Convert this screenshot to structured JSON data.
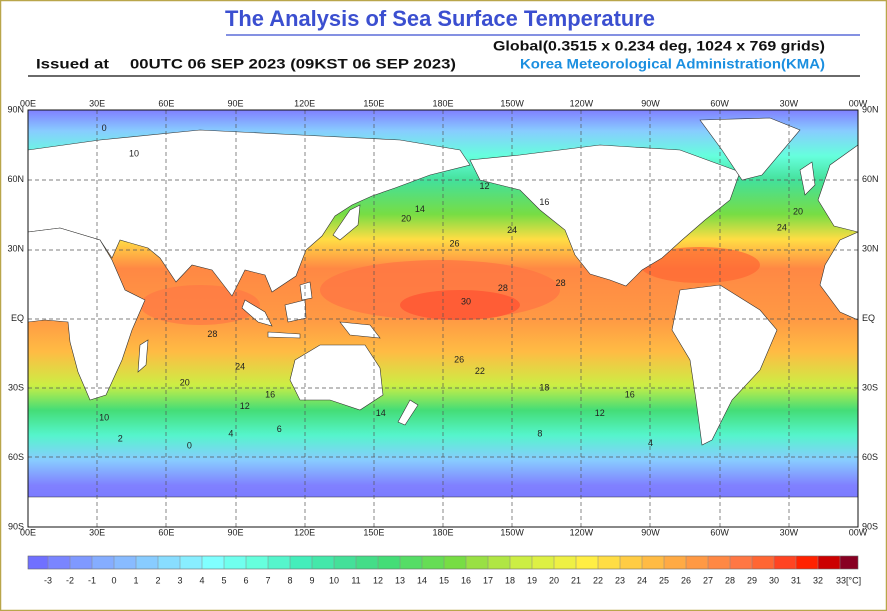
{
  "header": {
    "title": "The Analysis of Sea Surface Temperature",
    "issued_label": "Issued at",
    "issued_time": "00UTC 06 SEP 2023 (09KST 06 SEP 2023)",
    "grid_info": "Global(0.3515 x 0.234 deg, 1024 x 769 grids)",
    "agency": "Korea Meteorological Administration(KMA)"
  },
  "map": {
    "lon_labels": [
      "00E",
      "30E",
      "60E",
      "90E",
      "120E",
      "150E",
      "180E",
      "150W",
      "120W",
      "90W",
      "60W",
      "30W",
      "00W"
    ],
    "lat_labels": [
      "90N",
      "60N",
      "30N",
      "EQ",
      "30S",
      "60S",
      "90S"
    ],
    "contour_labels": [
      {
        "label": "30",
        "lon": 190,
        "lat": 7
      },
      {
        "label": "28",
        "lon": 80,
        "lat": -7
      },
      {
        "label": "28",
        "lon": 206,
        "lat": 13
      },
      {
        "label": "28",
        "lon": 231,
        "lat": 15
      },
      {
        "label": "26",
        "lon": 185,
        "lat": 32
      },
      {
        "label": "26",
        "lon": 187,
        "lat": -18
      },
      {
        "label": "24",
        "lon": 92,
        "lat": -21
      },
      {
        "label": "24",
        "lon": 210,
        "lat": 38
      },
      {
        "label": "24",
        "lon": 327,
        "lat": 39
      },
      {
        "label": "22",
        "lon": 196,
        "lat": -23
      },
      {
        "label": "20",
        "lon": 68,
        "lat": -28
      },
      {
        "label": "20",
        "lon": 164,
        "lat": 43
      },
      {
        "label": "20",
        "lon": 334,
        "lat": 46
      },
      {
        "label": "18",
        "lon": 224,
        "lat": -30
      },
      {
        "label": "16",
        "lon": 105,
        "lat": -33
      },
      {
        "label": "16",
        "lon": 261,
        "lat": -33
      },
      {
        "label": "16",
        "lon": 224,
        "lat": 50
      },
      {
        "label": "14",
        "lon": 153,
        "lat": -41
      },
      {
        "label": "14",
        "lon": 170,
        "lat": 47
      },
      {
        "label": "12",
        "lon": 94,
        "lat": -38
      },
      {
        "label": "12",
        "lon": 248,
        "lat": -41
      },
      {
        "label": "12",
        "lon": 198,
        "lat": 57
      },
      {
        "label": "10",
        "lon": 33,
        "lat": -43
      },
      {
        "label": "10",
        "lon": 46,
        "lat": 71
      },
      {
        "label": "8",
        "lon": 222,
        "lat": -50
      },
      {
        "label": "6",
        "lon": 109,
        "lat": -48
      },
      {
        "label": "4",
        "lon": 88,
        "lat": -50
      },
      {
        "label": "4",
        "lon": 270,
        "lat": -54
      },
      {
        "label": "2",
        "lon": 40,
        "lat": -52
      },
      {
        "label": "0",
        "lon": 70,
        "lat": -55
      },
      {
        "label": "0",
        "lon": 33,
        "lat": 82
      }
    ]
  },
  "colorbar": {
    "ticks": [
      -3,
      -2,
      -1,
      0,
      1,
      2,
      3,
      4,
      5,
      6,
      7,
      8,
      9,
      10,
      11,
      12,
      13,
      14,
      15,
      16,
      17,
      18,
      19,
      20,
      21,
      22,
      23,
      24,
      25,
      26,
      27,
      28,
      29,
      30,
      31,
      32,
      {
        "value": 33,
        "label": "33[°C]"
      }
    ],
    "colors": [
      "#7070ff",
      "#7a85ff",
      "#7f99ff",
      "#85adff",
      "#88bbff",
      "#88ccff",
      "#88ddff",
      "#88eeff",
      "#80ffff",
      "#70ffee",
      "#66ffdd",
      "#55f5cc",
      "#44eebb",
      "#44e8aa",
      "#44e099",
      "#44dd88",
      "#44dd77",
      "#55dd66",
      "#66dd55",
      "#77dd44",
      "#99e044",
      "#b0e644",
      "#ccee44",
      "#ddf044",
      "#eef044",
      "#ffee44",
      "#ffdd44",
      "#ffcc44",
      "#ffbb44",
      "#ffaa44",
      "#ff9944",
      "#ff8844",
      "#ff7744",
      "#ff6633",
      "#ff4422",
      "#ff2200",
      "#cc0000",
      "#880022"
    ]
  }
}
